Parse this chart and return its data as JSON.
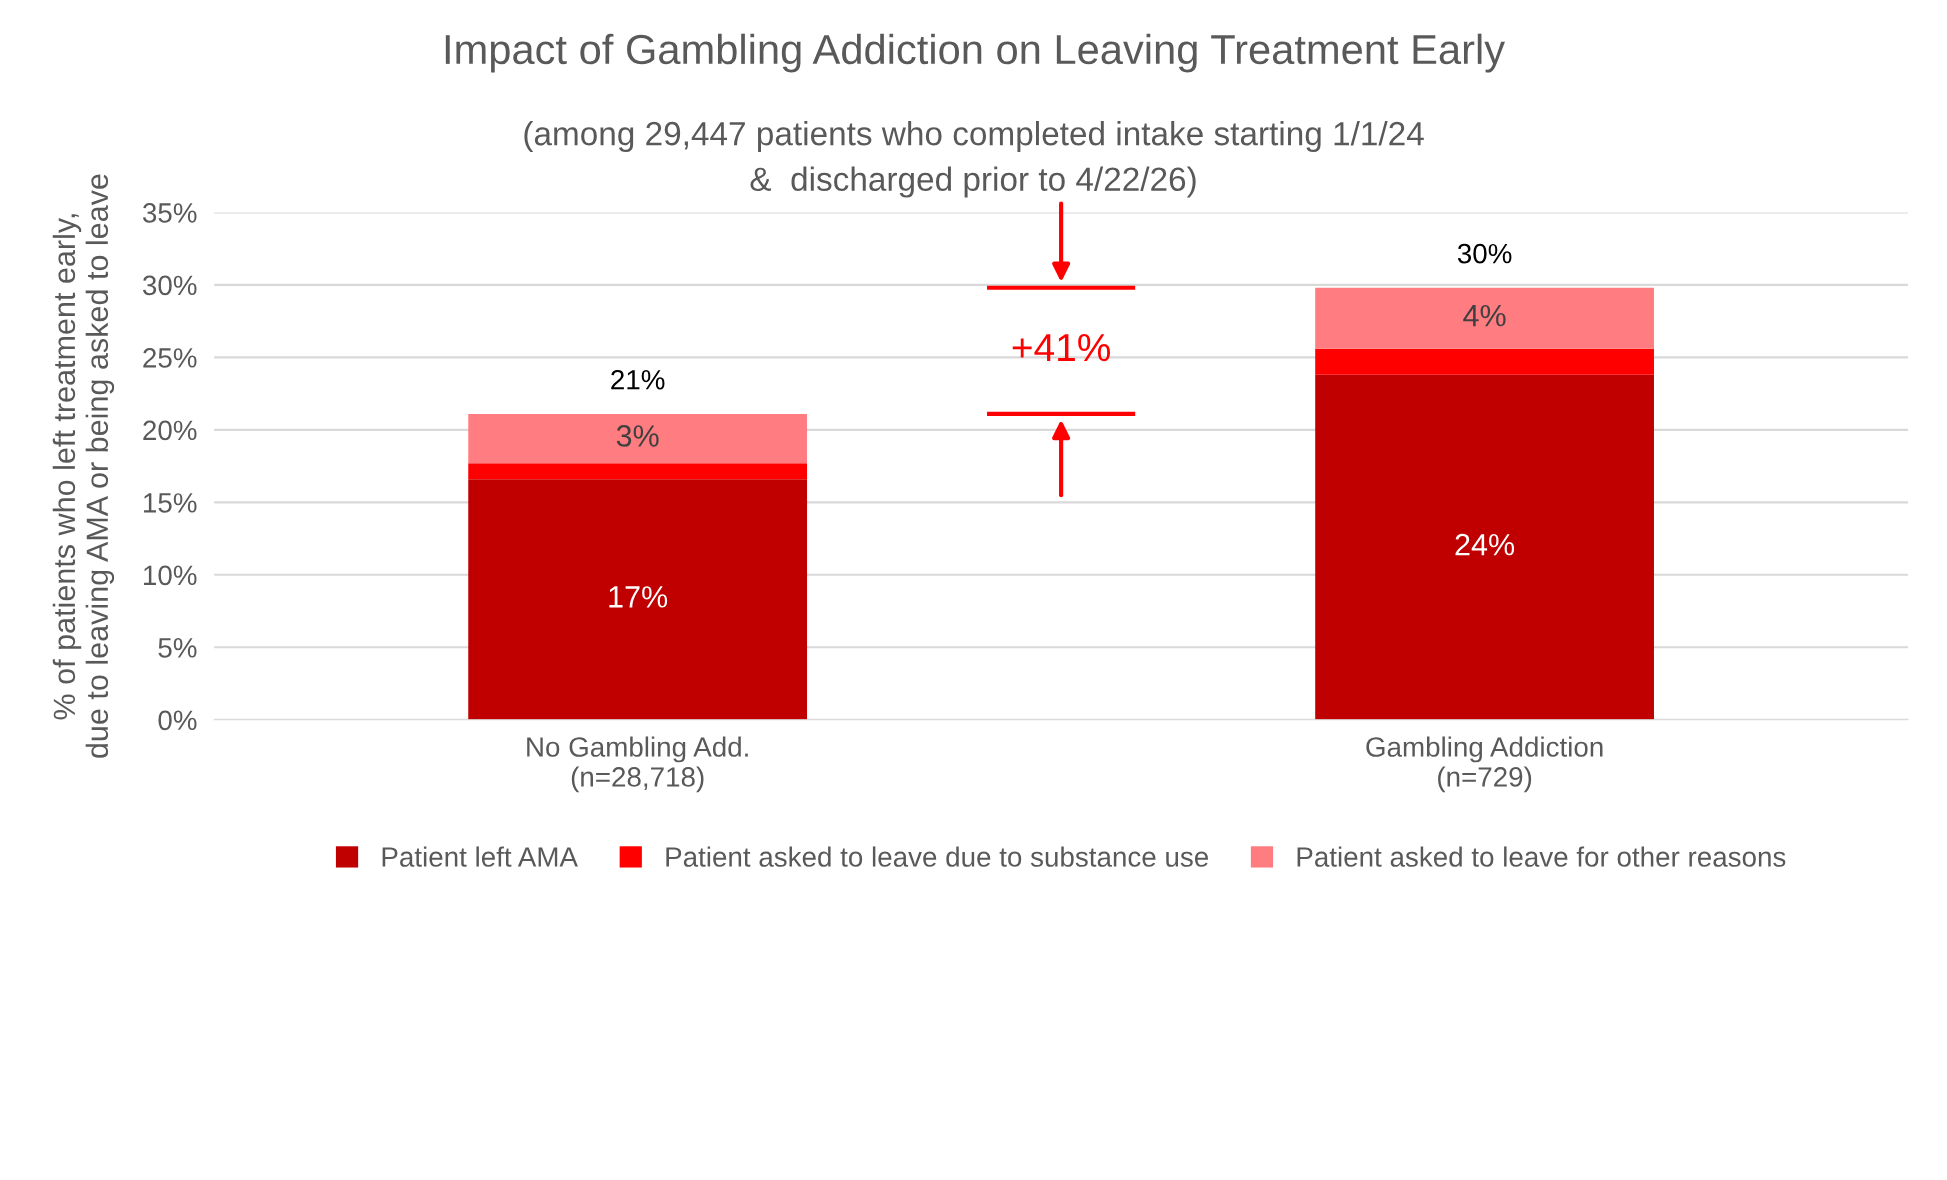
{
  "chart_data": {
    "type": "bar",
    "title": "Impact of Gambling Addiction on Leaving Treatment Early",
    "subtitle": "(among 29,447 patients who completed intake starting 1/1/24\n&  discharged prior to 4/22/26)",
    "ylabel": "% of patients who left treatment early,\ndue to leaving AMA or being asked to leave",
    "categories": [
      "No Gambling Add.\n(n=28,718)",
      "Gambling Addiction\n(n=729)"
    ],
    "stacked": true,
    "series": [
      {
        "name": "Patient left AMA",
        "color": "#c00000",
        "values": [
          16.6,
          23.8
        ],
        "value_labels": [
          "17%",
          "24%"
        ]
      },
      {
        "name": "Patient asked to leave due to substance use",
        "color": "#ff0000",
        "values": [
          1.1,
          1.8
        ],
        "value_labels": [
          null,
          null
        ]
      },
      {
        "name": "Patient asked to leave for other reasons",
        "color": "#ff7c80",
        "values": [
          3.4,
          4.2
        ],
        "value_labels": [
          "3%",
          "4%"
        ]
      }
    ],
    "totals": [
      "21%",
      "30%"
    ],
    "annotations": [
      "+41%"
    ],
    "ylim": [
      0,
      35
    ],
    "yticks": [
      {
        "value": 0,
        "label": "0%"
      },
      {
        "value": 5,
        "label": "5%"
      },
      {
        "value": 10,
        "label": "10%"
      },
      {
        "value": 15,
        "label": "15%"
      },
      {
        "value": 20,
        "label": "20%"
      },
      {
        "value": 25,
        "label": "25%"
      },
      {
        "value": 30,
        "label": "30%"
      },
      {
        "value": 35,
        "label": "35%"
      }
    ],
    "grid": "y",
    "legend": "bottom"
  }
}
